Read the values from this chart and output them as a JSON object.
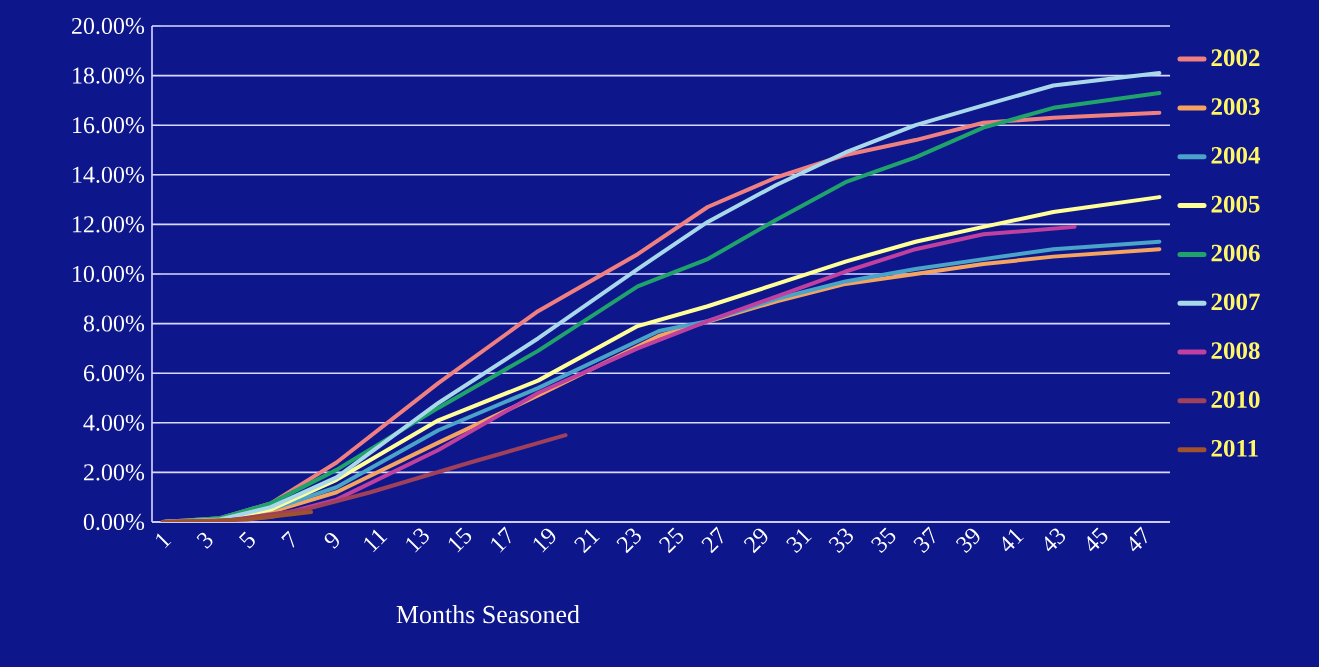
{
  "chart_data": {
    "type": "line",
    "xlabel": "Months Seasoned",
    "xlim": [
      0.5,
      48.5
    ],
    "xticks": [
      1,
      3,
      5,
      7,
      9,
      11,
      13,
      15,
      17,
      19,
      21,
      23,
      25,
      27,
      29,
      31,
      33,
      35,
      37,
      39,
      41,
      43,
      45,
      47
    ],
    "ylim": [
      0,
      20
    ],
    "yticks": [
      {
        "value": 0,
        "label": "0.00%"
      },
      {
        "value": 2,
        "label": "2.00%"
      },
      {
        "value": 4,
        "label": "4.00%"
      },
      {
        "value": 6,
        "label": "6.00%"
      },
      {
        "value": 8,
        "label": "8.00%"
      },
      {
        "value": 10,
        "label": "10.00%"
      },
      {
        "value": 12,
        "label": "12.00%"
      },
      {
        "value": 14,
        "label": "14.00%"
      },
      {
        "value": 16,
        "label": "16.00%"
      },
      {
        "value": 18,
        "label": "18.00%"
      },
      {
        "value": 20,
        "label": "20.00%"
      }
    ],
    "grid": "y",
    "legend": "right",
    "marker": "none",
    "line_style": "solid",
    "series": [
      {
        "name": "2002",
        "color": "#f08080",
        "x": [
          1,
          3.7,
          6.1,
          9.2,
          14,
          18.7,
          23.4,
          26.7,
          29.96,
          33.2,
          36.5,
          39.7,
          43,
          48
        ],
        "values": [
          0,
          0.15,
          0.75,
          2.4,
          5.6,
          8.5,
          10.8,
          12.7,
          13.9,
          14.8,
          15.4,
          16.1,
          16.3,
          16.5
        ]
      },
      {
        "name": "2003",
        "color": "#f4a460",
        "x": [
          1,
          3.7,
          6.1,
          9.2,
          14,
          18.7,
          24.4,
          29.96,
          33.2,
          36.5,
          39.7,
          43,
          48
        ],
        "values": [
          0,
          0.05,
          0.4,
          1.2,
          3.2,
          5.1,
          7.5,
          8.9,
          9.6,
          10.0,
          10.4,
          10.7,
          11.0
        ]
      },
      {
        "name": "2004",
        "color": "#4aa3c8",
        "x": [
          1,
          3.7,
          6.1,
          9.2,
          14,
          18.7,
          24.4,
          26.7,
          29.96,
          33.2,
          36.5,
          39.7,
          43,
          48
        ],
        "values": [
          0,
          0.1,
          0.5,
          1.4,
          3.7,
          5.4,
          7.7,
          8.1,
          9.0,
          9.7,
          10.2,
          10.6,
          11.0,
          11.3
        ]
      },
      {
        "name": "2005",
        "color": "#ffff99",
        "x": [
          1,
          3.7,
          6.1,
          9.2,
          14,
          18.7,
          23.4,
          26.7,
          29.96,
          33.2,
          36.5,
          39.7,
          43,
          48
        ],
        "values": [
          0,
          0.1,
          0.5,
          1.7,
          4.1,
          5.7,
          7.9,
          8.7,
          9.6,
          10.5,
          11.3,
          11.9,
          12.5,
          13.1
        ]
      },
      {
        "name": "2006",
        "color": "#1fa36b",
        "x": [
          1,
          3.7,
          6.1,
          9.2,
          14,
          18.7,
          23.4,
          26.7,
          29.96,
          33.2,
          36.5,
          39.7,
          43,
          48
        ],
        "values": [
          0,
          0.15,
          0.75,
          2.1,
          4.6,
          6.9,
          9.5,
          10.6,
          12.2,
          13.7,
          14.7,
          15.9,
          16.7,
          17.3
        ]
      },
      {
        "name": "2007",
        "color": "#a8d8ea",
        "x": [
          1,
          3.7,
          6.1,
          9.2,
          14,
          18.7,
          23.4,
          26.7,
          29.96,
          33.2,
          36.5,
          39.7,
          43,
          48
        ],
        "values": [
          0,
          0.1,
          0.6,
          1.8,
          4.8,
          7.4,
          10.2,
          12.1,
          13.6,
          14.9,
          16.0,
          16.8,
          17.6,
          18.1
        ]
      },
      {
        "name": "2008",
        "color": "#c040a0",
        "x": [
          1,
          3.7,
          6.1,
          9.2,
          14,
          18.7,
          23.4,
          26.7,
          29.96,
          33.2,
          36.5,
          39.7,
          44
        ],
        "values": [
          0,
          0.05,
          0.2,
          0.9,
          2.9,
          5.2,
          7.0,
          8.1,
          9.1,
          10.1,
          11.0,
          11.6,
          11.9
        ]
      },
      {
        "name": "2010",
        "color": "#a0405a",
        "x": [
          1,
          4,
          7.7,
          10.8,
          15.5,
          20
        ],
        "values": [
          0,
          0.05,
          0.5,
          1.2,
          2.4,
          3.5
        ]
      },
      {
        "name": "2011",
        "color": "#a0522d",
        "x": [
          1,
          5,
          8
        ],
        "values": [
          0,
          0.1,
          0.4
        ]
      }
    ]
  }
}
